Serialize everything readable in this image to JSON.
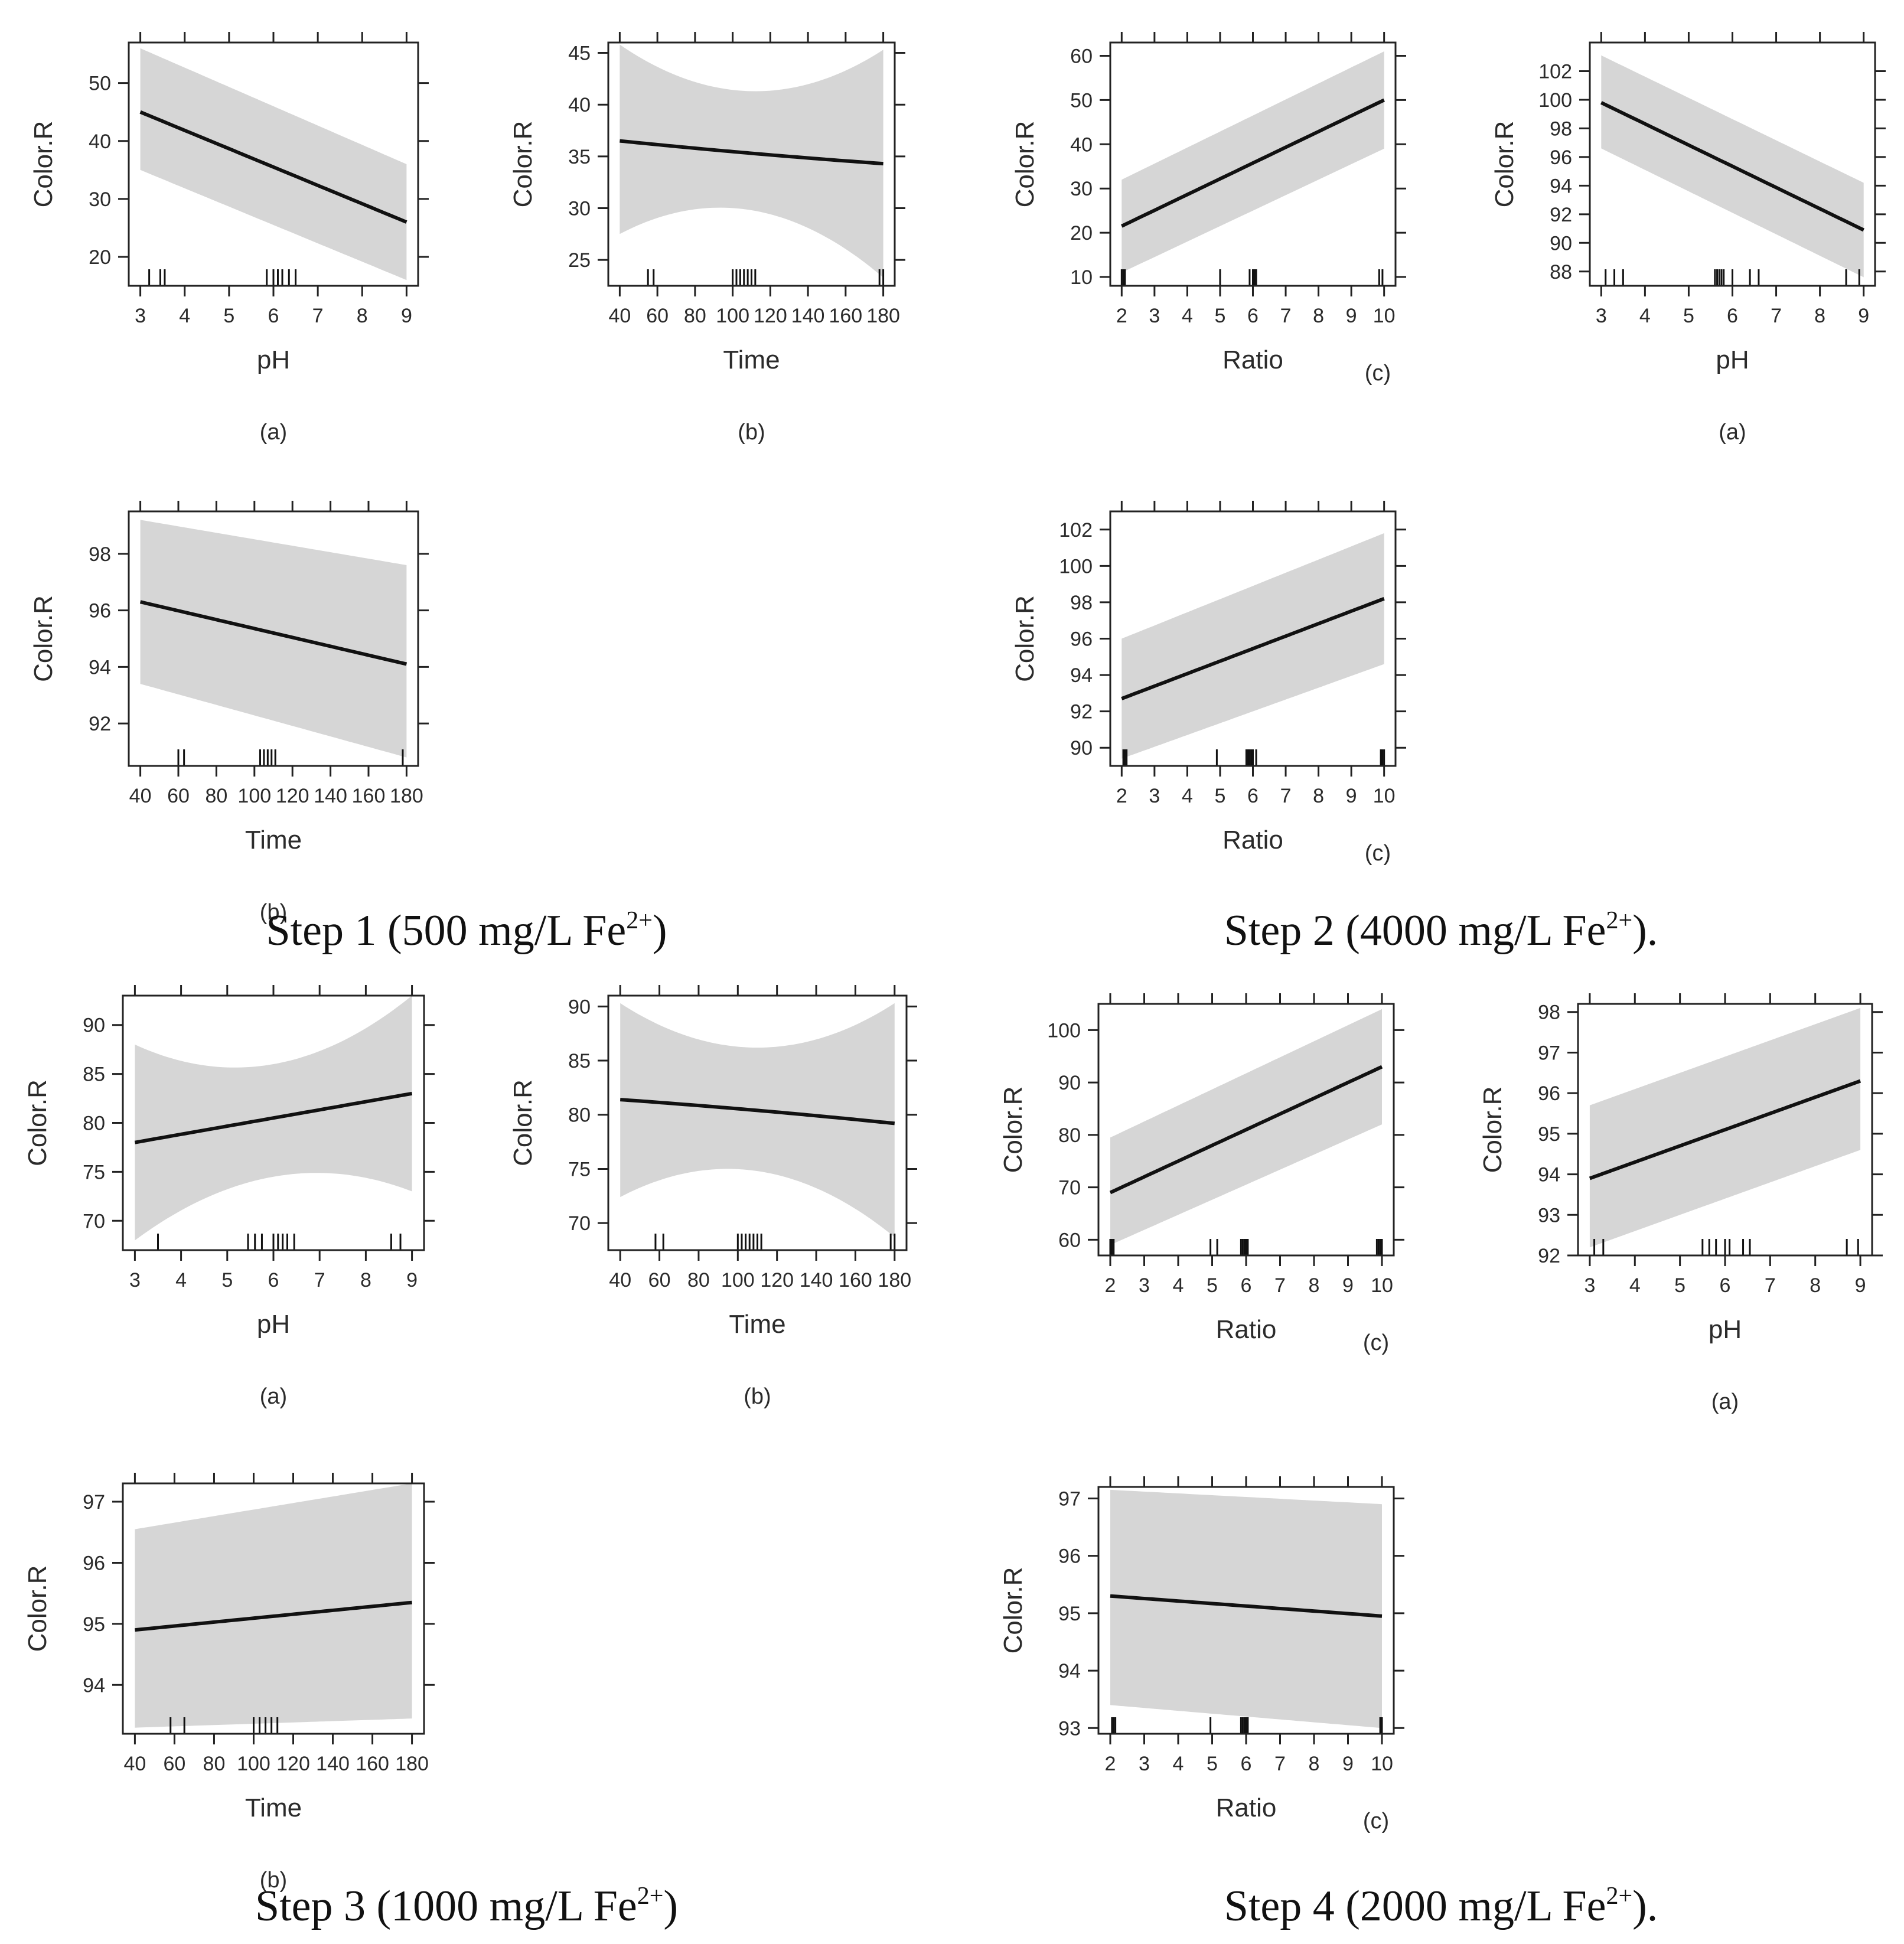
{
  "figure": {
    "steps": [
      {
        "caption": "Step 1 (500 mg/L Fe",
        "ion": "2+",
        "suffix": ")"
      },
      {
        "caption": "Step 2 (4000 mg/L Fe",
        "ion": "2+",
        "suffix": ")."
      },
      {
        "caption": "Step 3 (1000 mg/L Fe",
        "ion": "2+",
        "suffix": ")"
      },
      {
        "caption": "Step 4 (2000 mg/L Fe",
        "ion": "2+",
        "suffix": ")."
      }
    ]
  },
  "chart_data": [
    {
      "step": 1,
      "panel": "(a)",
      "type": "line",
      "xlabel": "pH",
      "ylabel": "Color.R",
      "xlim": [
        3,
        9
      ],
      "ylim": [
        15,
        57
      ],
      "xticks": [
        "3",
        "4",
        "5",
        "6",
        "7",
        "8",
        "9"
      ],
      "yticks": [
        "20",
        "30",
        "40",
        "50"
      ],
      "x": [
        3,
        9
      ],
      "fit": [
        45,
        26
      ],
      "ci_lower": [
        35,
        16
      ],
      "ci_upper": [
        56,
        36
      ],
      "rug": [
        3.2,
        3.45,
        3.55,
        5.85,
        6.0,
        6.1,
        6.2,
        6.35,
        6.5
      ]
    },
    {
      "step": 1,
      "panel": "(b)",
      "type": "line",
      "xlabel": "Time",
      "ylabel": "Color.R",
      "xlim": [
        40,
        180
      ],
      "ylim": [
        22.5,
        46
      ],
      "xticks": [
        "40",
        "60",
        "80",
        "100",
        "120",
        "140",
        "160",
        "180"
      ],
      "yticks": [
        "25",
        "30",
        "35",
        "40",
        "45"
      ],
      "x": [
        40,
        110,
        180
      ],
      "fit": [
        36.5,
        35.3,
        34.3
      ],
      "ci_lower": [
        27.5,
        29.8,
        23.3
      ],
      "ci_upper": [
        45.8,
        41.3,
        45.3
      ],
      "rug": [
        55,
        58,
        100,
        102,
        104,
        106,
        108,
        110,
        112,
        178,
        180
      ]
    },
    {
      "step": 1,
      "panel": "(c)",
      "type": "line",
      "xlabel": "Ratio",
      "ylabel": "Color.R",
      "xlim": [
        2,
        10
      ],
      "ylim": [
        8,
        63
      ],
      "xticks": [
        "2",
        "3",
        "4",
        "5",
        "6",
        "7",
        "8",
        "9",
        "10"
      ],
      "yticks": [
        "10",
        "20",
        "30",
        "40",
        "50",
        "60"
      ],
      "x": [
        2,
        10
      ],
      "fit": [
        21.5,
        50
      ],
      "ci_lower": [
        11,
        39
      ],
      "ci_upper": [
        32,
        61
      ],
      "rug": [
        2.0,
        2.05,
        2.1,
        5.0,
        5.9,
        6.0,
        6.05,
        6.1,
        9.85,
        9.95
      ]
    },
    {
      "step": 2,
      "panel": "(a)",
      "type": "line",
      "xlabel": "pH",
      "ylabel": "Color.R",
      "xlim": [
        3,
        9
      ],
      "ylim": [
        87,
        104
      ],
      "xticks": [
        "3",
        "4",
        "5",
        "6",
        "7",
        "8",
        "9"
      ],
      "yticks": [
        "88",
        "90",
        "92",
        "94",
        "96",
        "98",
        "100",
        "102"
      ],
      "x": [
        3,
        9
      ],
      "fit": [
        99.8,
        90.9
      ],
      "ci_lower": [
        96.6,
        87.6
      ],
      "ci_upper": [
        103.1,
        94.2
      ],
      "rug": [
        3.1,
        3.3,
        3.5,
        5.6,
        5.65,
        5.7,
        5.75,
        5.8,
        6.0,
        6.4,
        6.6,
        8.6,
        8.9
      ]
    },
    {
      "step": 2,
      "panel": "(b)",
      "type": "line",
      "xlabel": "Time",
      "ylabel": "Color.R",
      "xlim": [
        40,
        180
      ],
      "ylim": [
        90.5,
        99.5
      ],
      "xticks": [
        "40",
        "60",
        "80",
        "100",
        "120",
        "140",
        "160",
        "180"
      ],
      "yticks": [
        "92",
        "94",
        "96",
        "98"
      ],
      "x": [
        40,
        180
      ],
      "fit": [
        96.3,
        94.1
      ],
      "ci_lower": [
        93.4,
        90.8
      ],
      "ci_upper": [
        99.2,
        97.6
      ],
      "rug": [
        60,
        63,
        103,
        105,
        107,
        109,
        111,
        178
      ]
    },
    {
      "step": 2,
      "panel": "(c)",
      "type": "line",
      "xlabel": "Ratio",
      "ylabel": "Color.R",
      "xlim": [
        2,
        10
      ],
      "ylim": [
        89,
        103
      ],
      "xticks": [
        "2",
        "3",
        "4",
        "5",
        "6",
        "7",
        "8",
        "9",
        "10"
      ],
      "yticks": [
        "90",
        "92",
        "94",
        "96",
        "98",
        "100",
        "102"
      ],
      "x": [
        2,
        10
      ],
      "fit": [
        92.7,
        98.2
      ],
      "ci_lower": [
        89.4,
        94.6
      ],
      "ci_upper": [
        96,
        101.8
      ],
      "rug": [
        2.05,
        2.1,
        2.15,
        4.9,
        5.8,
        5.85,
        5.9,
        5.95,
        6.0,
        6.1,
        9.9,
        9.95,
        10.0
      ]
    },
    {
      "step": 3,
      "panel": "(a)",
      "type": "line",
      "xlabel": "pH",
      "ylabel": "Color.R",
      "xlim": [
        3,
        9
      ],
      "ylim": [
        67,
        93
      ],
      "xticks": [
        "3",
        "4",
        "5",
        "6",
        "7",
        "8",
        "9"
      ],
      "yticks": [
        "70",
        "75",
        "80",
        "85",
        "90"
      ],
      "x": [
        3,
        6,
        9
      ],
      "fit": [
        78,
        80.5,
        83
      ],
      "ci_lower": [
        68,
        74.5,
        73
      ],
      "ci_upper": [
        88,
        86,
        93
      ],
      "rug": [
        3.5,
        5.45,
        5.6,
        5.75,
        6.0,
        6.1,
        6.2,
        6.3,
        6.45,
        8.55,
        8.75
      ]
    },
    {
      "step": 3,
      "panel": "(b)",
      "type": "line",
      "xlabel": "Time",
      "ylabel": "Color.R",
      "xlim": [
        40,
        180
      ],
      "ylim": [
        67.5,
        91
      ],
      "xticks": [
        "40",
        "60",
        "80",
        "100",
        "120",
        "140",
        "160",
        "180"
      ],
      "yticks": [
        "70",
        "75",
        "80",
        "85",
        "90"
      ],
      "x": [
        40,
        110,
        180
      ],
      "fit": [
        81.4,
        80.4,
        79.2
      ],
      "ci_lower": [
        72.4,
        74.8,
        68.7
      ],
      "ci_upper": [
        90.3,
        86.2,
        90.3
      ],
      "rug": [
        58,
        62,
        100,
        102,
        104,
        106,
        108,
        110,
        112,
        178,
        180
      ]
    },
    {
      "step": 3,
      "panel": "(c)",
      "type": "line",
      "xlabel": "Ratio",
      "ylabel": "Color.R",
      "xlim": [
        2,
        10
      ],
      "ylim": [
        57,
        105
      ],
      "xticks": [
        "2",
        "3",
        "4",
        "5",
        "6",
        "7",
        "8",
        "9",
        "10"
      ],
      "yticks": [
        "60",
        "70",
        "80",
        "90",
        "100"
      ],
      "x": [
        2,
        10
      ],
      "fit": [
        69,
        93
      ],
      "ci_lower": [
        59,
        82
      ],
      "ci_upper": [
        79.5,
        104
      ],
      "rug": [
        2.0,
        2.05,
        2.1,
        4.95,
        5.15,
        5.85,
        5.9,
        5.95,
        6.0,
        6.05,
        9.85,
        9.9,
        9.95,
        10.0
      ]
    },
    {
      "step": 4,
      "panel": "(a)",
      "type": "line",
      "xlabel": "pH",
      "ylabel": "Color.R",
      "xlim": [
        3,
        9
      ],
      "ylim": [
        92,
        98.2
      ],
      "xticks": [
        "3",
        "4",
        "5",
        "6",
        "7",
        "8",
        "9"
      ],
      "yticks": [
        "92",
        "93",
        "94",
        "95",
        "96",
        "97",
        "98"
      ],
      "x": [
        3,
        9
      ],
      "fit": [
        93.9,
        96.3
      ],
      "ci_lower": [
        92.2,
        94.6
      ],
      "ci_upper": [
        95.7,
        98.1
      ],
      "rug": [
        3.1,
        3.3,
        5.5,
        5.65,
        5.8,
        6.0,
        6.1,
        6.4,
        6.55,
        8.7,
        8.95
      ]
    },
    {
      "step": 4,
      "panel": "(b)",
      "type": "line",
      "xlabel": "Time",
      "ylabel": "Color.R",
      "xlim": [
        40,
        180
      ],
      "ylim": [
        93.2,
        97.3
      ],
      "xticks": [
        "40",
        "60",
        "80",
        "100",
        "120",
        "140",
        "160",
        "180"
      ],
      "yticks": [
        "94",
        "95",
        "96",
        "97"
      ],
      "x": [
        40,
        180
      ],
      "fit": [
        94.9,
        95.35
      ],
      "ci_lower": [
        93.3,
        93.45
      ],
      "ci_upper": [
        96.55,
        97.3
      ],
      "rug": [
        58,
        65,
        100,
        103,
        106,
        109,
        112
      ]
    },
    {
      "step": 4,
      "panel": "(c)",
      "type": "line",
      "xlabel": "Ratio",
      "ylabel": "Color.R",
      "xlim": [
        2,
        10
      ],
      "ylim": [
        92.9,
        97.2
      ],
      "xticks": [
        "2",
        "3",
        "4",
        "5",
        "6",
        "7",
        "8",
        "9",
        "10"
      ],
      "yticks": [
        "93",
        "94",
        "95",
        "96",
        "97"
      ],
      "x": [
        2,
        10
      ],
      "fit": [
        95.3,
        94.95
      ],
      "ci_lower": [
        93.4,
        93
      ],
      "ci_upper": [
        97.15,
        96.9
      ],
      "rug": [
        2.05,
        2.1,
        2.15,
        4.95,
        5.85,
        5.9,
        5.95,
        6.0,
        6.05,
        9.95,
        10.0
      ]
    }
  ]
}
